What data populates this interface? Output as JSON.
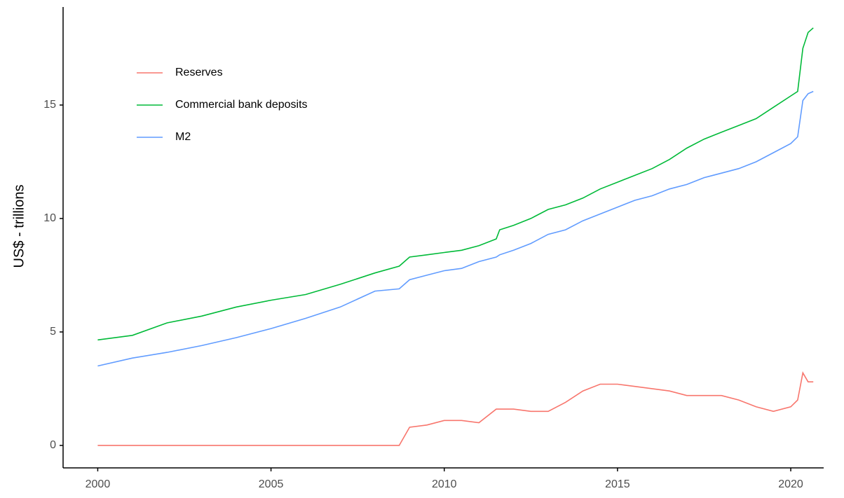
{
  "chart_data": {
    "type": "line",
    "y_label": "US$ - trillions",
    "x": [
      2000,
      2001,
      2002,
      2003,
      2004,
      2005,
      2006,
      2007,
      2008,
      2008.7,
      2009,
      2009.5,
      2010,
      2010.5,
      2011,
      2011.5,
      2011.6,
      2012,
      2012.5,
      2013,
      2013.5,
      2014,
      2014.5,
      2015,
      2015.5,
      2016,
      2016.5,
      2017,
      2017.5,
      2018,
      2018.5,
      2019,
      2019.5,
      2020,
      2020.2,
      2020.35,
      2020.5,
      2020.65
    ],
    "series": [
      {
        "name": "Reserves",
        "color": "#F8766D",
        "values": [
          0,
          0,
          0,
          0,
          0,
          0,
          0,
          0,
          0,
          0,
          0.8,
          0.9,
          1.1,
          1.1,
          1.0,
          1.6,
          1.6,
          1.6,
          1.5,
          1.5,
          1.9,
          2.4,
          2.7,
          2.7,
          2.6,
          2.5,
          2.4,
          2.2,
          2.2,
          2.2,
          2.0,
          1.7,
          1.5,
          1.7,
          2.0,
          3.2,
          2.8,
          2.8
        ]
      },
      {
        "name": "Commercial bank deposits",
        "color": "#00BA38",
        "values": [
          4.65,
          4.85,
          5.4,
          5.7,
          6.1,
          6.4,
          6.65,
          7.1,
          7.6,
          7.9,
          8.3,
          8.4,
          8.5,
          8.6,
          8.8,
          9.1,
          9.5,
          9.7,
          10.0,
          10.4,
          10.6,
          10.9,
          11.3,
          11.6,
          11.9,
          12.2,
          12.6,
          13.1,
          13.5,
          13.8,
          14.1,
          14.4,
          14.9,
          15.4,
          15.6,
          17.5,
          18.2,
          18.4
        ]
      },
      {
        "name": "M2",
        "color": "#619CFF",
        "values": [
          3.5,
          3.85,
          4.1,
          4.4,
          4.75,
          5.15,
          5.6,
          6.1,
          6.8,
          6.9,
          7.3,
          7.5,
          7.7,
          7.8,
          8.1,
          8.3,
          8.4,
          8.6,
          8.9,
          9.3,
          9.5,
          9.9,
          10.2,
          10.5,
          10.8,
          11.0,
          11.3,
          11.5,
          11.8,
          12.0,
          12.2,
          12.5,
          12.9,
          13.3,
          13.6,
          15.2,
          15.5,
          15.6
        ]
      }
    ],
    "xlim": [
      1999,
      2020.95
    ],
    "xticks": [
      2000,
      2005,
      2010,
      2015,
      2020
    ],
    "ylim": [
      -0.99,
      19.32
    ],
    "yticks": [
      0,
      5,
      10,
      15
    ],
    "grid": false,
    "legend": "top-left"
  }
}
